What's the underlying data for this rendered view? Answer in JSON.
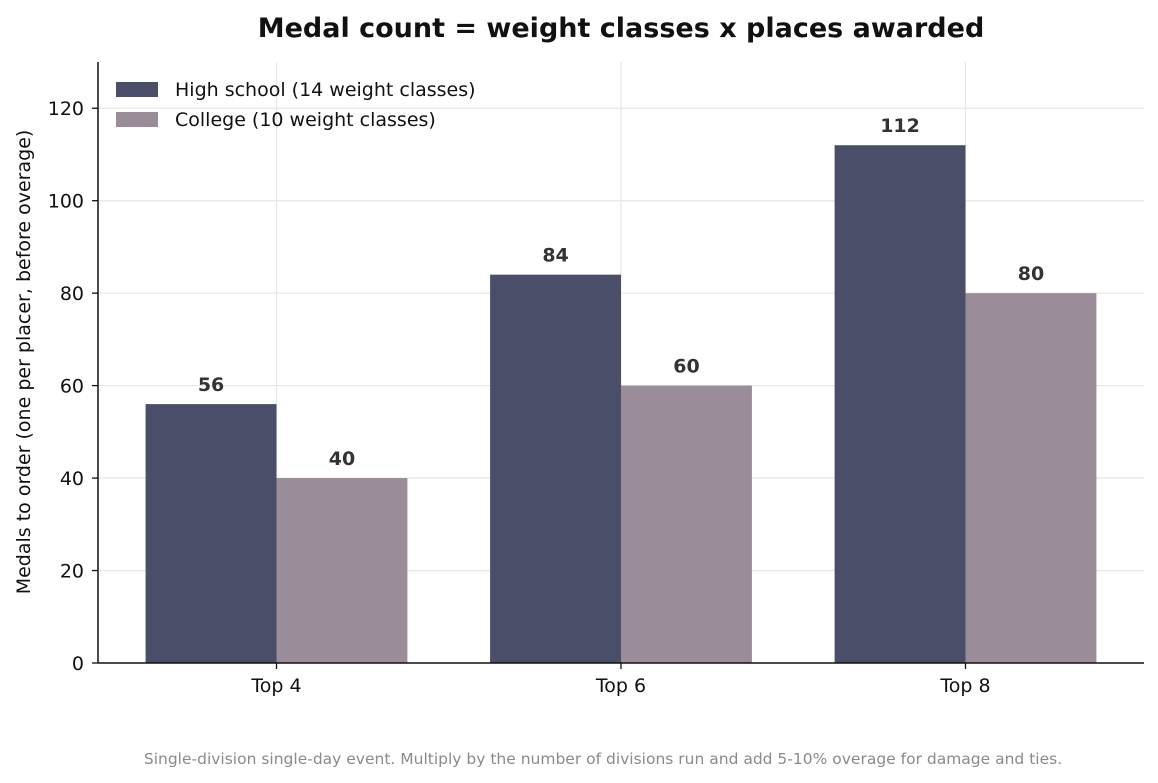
{
  "chart_data": {
    "type": "bar",
    "title": "Medal count = weight classes x places awarded",
    "xlabel": "",
    "ylabel": "Medals to order (one per placer, before overage)",
    "categories": [
      "Top 4",
      "Top 6",
      "Top 8"
    ],
    "series": [
      {
        "name": "High school (14 weight classes)",
        "color": "#4a4e69",
        "values": [
          56,
          84,
          112
        ],
        "value_labels": [
          "56",
          "84",
          "112"
        ]
      },
      {
        "name": "College (10 weight classes)",
        "color": "#9a8c98",
        "values": [
          40,
          60,
          80
        ],
        "value_labels": [
          "40",
          "60",
          "80"
        ]
      }
    ],
    "ylim": [
      0,
      130
    ],
    "yticks": [
      0,
      20,
      40,
      60,
      80,
      100,
      120
    ],
    "ytick_labels": [
      "0",
      "20",
      "40",
      "60",
      "80",
      "100",
      "120"
    ],
    "grid": true,
    "legend_position": "top-left",
    "caption": "Single-division single-day event. Multiply by the number of divisions run and add 5-10% overage for damage and ties."
  }
}
